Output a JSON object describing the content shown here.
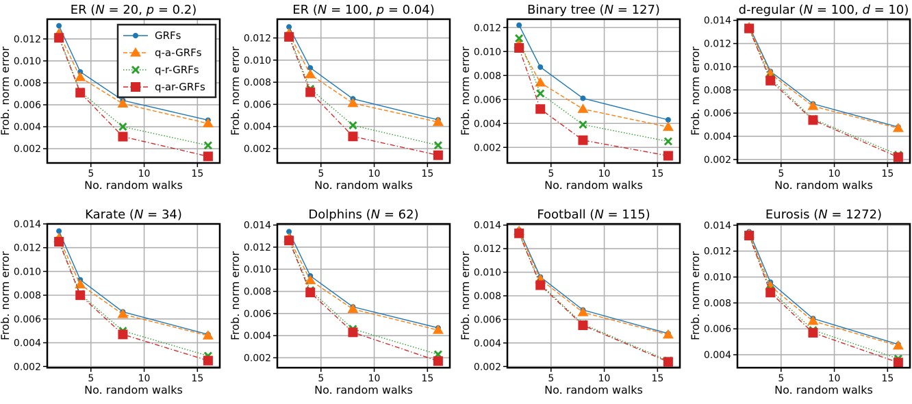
{
  "legend": {
    "items": [
      {
        "label": "GRFs",
        "color": "#1f77b4",
        "marker": "circle",
        "dash": "solid"
      },
      {
        "label": "q-a-GRFs",
        "color": "#ff7f0e",
        "marker": "triangle",
        "dash": "dashed"
      },
      {
        "label": "q-r-GRFs",
        "color": "#2ca02c",
        "marker": "x",
        "dash": "dotted"
      },
      {
        "label": "q-ar-GRFs",
        "color": "#d62728",
        "marker": "square",
        "dash": "dashdot"
      }
    ]
  },
  "chart_data": [
    {
      "type": "line",
      "title_parts": [
        "ER (",
        "N",
        " = 20, ",
        "p",
        " = 0.2)"
      ],
      "xlabel": "No. random walks",
      "ylabel": "Frob. norm error",
      "x": [
        2,
        4,
        8,
        16
      ],
      "xlim": [
        0.9,
        17.1
      ],
      "xticks": [
        5,
        10,
        15
      ],
      "xtick_labels": [
        "5",
        "10",
        "15"
      ],
      "ylim": [
        0.0007,
        0.0138
      ],
      "yticks": [
        0.002,
        0.004,
        0.006,
        0.008,
        0.01,
        0.012
      ],
      "ytick_labels": [
        "0.002",
        "0.004",
        "0.006",
        "0.008",
        "0.010",
        "0.012"
      ],
      "show_legend": true,
      "series": [
        {
          "name": "GRFs",
          "values": [
            0.0132,
            0.009,
            0.0064,
            0.0046
          ]
        },
        {
          "name": "q-a-GRFs",
          "values": [
            0.0125,
            0.0085,
            0.0061,
            0.0043
          ]
        },
        {
          "name": "q-r-GRFs",
          "values": [
            0.0122,
            0.0072,
            0.004,
            0.0023
          ]
        },
        {
          "name": "q-ar-GRFs",
          "values": [
            0.0121,
            0.0071,
            0.0031,
            0.0013
          ]
        }
      ]
    },
    {
      "type": "line",
      "title_parts": [
        "ER (",
        "N",
        " = 100, ",
        "p",
        " = 0.04)"
      ],
      "xlabel": "No. random walks",
      "ylabel": "Frob. norm error",
      "x": [
        2,
        4,
        8,
        16
      ],
      "xlim": [
        0.9,
        17.1
      ],
      "xticks": [
        5,
        10,
        15
      ],
      "xtick_labels": [
        "5",
        "10",
        "15"
      ],
      "ylim": [
        0.0007,
        0.0137
      ],
      "yticks": [
        0.002,
        0.004,
        0.006,
        0.008,
        0.01,
        0.012
      ],
      "ytick_labels": [
        "0.002",
        "0.004",
        "0.006",
        "0.008",
        "0.010",
        "0.012"
      ],
      "show_legend": false,
      "series": [
        {
          "name": "GRFs",
          "values": [
            0.013,
            0.0093,
            0.0065,
            0.0046
          ]
        },
        {
          "name": "q-a-GRFs",
          "values": [
            0.0124,
            0.0087,
            0.0061,
            0.0044
          ]
        },
        {
          "name": "q-r-GRFs",
          "values": [
            0.0122,
            0.0074,
            0.0041,
            0.0023
          ]
        },
        {
          "name": "q-ar-GRFs",
          "values": [
            0.0121,
            0.0071,
            0.0031,
            0.0014
          ]
        }
      ]
    },
    {
      "type": "line",
      "title_parts": [
        "Binary tree (",
        "N",
        " = 127)"
      ],
      "xlabel": "No. random walks",
      "ylabel": "Frob. norm error",
      "x": [
        2,
        4,
        8,
        16
      ],
      "xlim": [
        0.9,
        17.1
      ],
      "xticks": [
        5,
        10,
        15
      ],
      "xtick_labels": [
        "5",
        "10",
        "15"
      ],
      "ylim": [
        0.0007,
        0.0127
      ],
      "yticks": [
        0.002,
        0.004,
        0.006,
        0.008,
        0.01,
        0.012
      ],
      "ytick_labels": [
        "0.002",
        "0.004",
        "0.006",
        "0.008",
        "0.010",
        "0.012"
      ],
      "show_legend": false,
      "series": [
        {
          "name": "GRFs",
          "values": [
            0.0122,
            0.0087,
            0.0061,
            0.0043
          ]
        },
        {
          "name": "q-a-GRFs",
          "values": [
            0.0106,
            0.0074,
            0.0052,
            0.0037
          ]
        },
        {
          "name": "q-r-GRFs",
          "values": [
            0.0111,
            0.0065,
            0.0039,
            0.0025
          ]
        },
        {
          "name": "q-ar-GRFs",
          "values": [
            0.0103,
            0.0052,
            0.0026,
            0.0013
          ]
        }
      ]
    },
    {
      "type": "line",
      "title_parts": [
        "d-regular (",
        "N",
        " = 100, ",
        "d",
        " = 10)"
      ],
      "xlabel": "No. random walks",
      "ylabel": "Frob. norm error",
      "x": [
        2,
        4,
        8,
        16
      ],
      "xlim": [
        0.9,
        17.1
      ],
      "xticks": [
        5,
        10,
        15
      ],
      "xtick_labels": [
        "5",
        "10",
        "15"
      ],
      "ylim": [
        0.0017,
        0.0141
      ],
      "yticks": [
        0.002,
        0.004,
        0.006,
        0.008,
        0.01,
        0.012,
        0.014
      ],
      "ytick_labels": [
        "0.002",
        "0.004",
        "0.006",
        "0.008",
        "0.010",
        "0.012",
        "0.014"
      ],
      "show_legend": false,
      "series": [
        {
          "name": "GRFs",
          "values": [
            0.0135,
            0.0096,
            0.0068,
            0.0048
          ]
        },
        {
          "name": "q-a-GRFs",
          "values": [
            0.0134,
            0.0094,
            0.0066,
            0.0047
          ]
        },
        {
          "name": "q-r-GRFs",
          "values": [
            0.0133,
            0.009,
            0.0055,
            0.0024
          ]
        },
        {
          "name": "q-ar-GRFs",
          "values": [
            0.0133,
            0.0088,
            0.0054,
            0.0022
          ]
        }
      ]
    },
    {
      "type": "line",
      "title_parts": [
        "Karate (",
        "N",
        " = 34)"
      ],
      "xlabel": "No. random walks",
      "ylabel": "Frob. norm error",
      "x": [
        2,
        4,
        8,
        16
      ],
      "xlim": [
        0.9,
        17.1
      ],
      "xticks": [
        5,
        10,
        15
      ],
      "xtick_labels": [
        "5",
        "10",
        "15"
      ],
      "ylim": [
        0.0019,
        0.014
      ],
      "yticks": [
        0.002,
        0.004,
        0.006,
        0.008,
        0.01,
        0.012,
        0.014
      ],
      "ytick_labels": [
        "0.002",
        "0.004",
        "0.006",
        "0.008",
        "0.010",
        "0.012",
        "0.014"
      ],
      "show_legend": false,
      "series": [
        {
          "name": "GRFs",
          "values": [
            0.0134,
            0.0093,
            0.0066,
            0.0047
          ]
        },
        {
          "name": "q-a-GRFs",
          "values": [
            0.0128,
            0.0089,
            0.0064,
            0.0046
          ]
        },
        {
          "name": "q-r-GRFs",
          "values": [
            0.0126,
            0.0081,
            0.005,
            0.0029
          ]
        },
        {
          "name": "q-ar-GRFs",
          "values": [
            0.0125,
            0.008,
            0.0047,
            0.0025
          ]
        }
      ]
    },
    {
      "type": "line",
      "title_parts": [
        "Dolphins (",
        "N",
        " = 62)"
      ],
      "xlabel": "No. random walks",
      "ylabel": "Frob. norm error",
      "x": [
        2,
        4,
        8,
        16
      ],
      "xlim": [
        0.9,
        17.1
      ],
      "xticks": [
        5,
        10,
        15
      ],
      "xtick_labels": [
        "5",
        "10",
        "15"
      ],
      "ylim": [
        0.0011,
        0.0141
      ],
      "yticks": [
        0.002,
        0.004,
        0.006,
        0.008,
        0.01,
        0.012,
        0.014
      ],
      "ytick_labels": [
        "0.002",
        "0.004",
        "0.006",
        "0.008",
        "0.010",
        "0.012",
        "0.014"
      ],
      "show_legend": false,
      "series": [
        {
          "name": "GRFs",
          "values": [
            0.0134,
            0.0094,
            0.0066,
            0.0047
          ]
        },
        {
          "name": "q-a-GRFs",
          "values": [
            0.0128,
            0.009,
            0.0064,
            0.0045
          ]
        },
        {
          "name": "q-r-GRFs",
          "values": [
            0.0127,
            0.0081,
            0.0046,
            0.0023
          ]
        },
        {
          "name": "q-ar-GRFs",
          "values": [
            0.0126,
            0.0079,
            0.0043,
            0.0017
          ]
        }
      ]
    },
    {
      "type": "line",
      "title_parts": [
        "Football (",
        "N",
        " = 115)"
      ],
      "xlabel": "No. random walks",
      "ylabel": "Frob. norm error",
      "x": [
        2,
        4,
        8,
        16
      ],
      "xlim": [
        0.9,
        17.1
      ],
      "xticks": [
        5,
        10,
        15
      ],
      "xtick_labels": [
        "5",
        "10",
        "15"
      ],
      "ylim": [
        0.0019,
        0.0141
      ],
      "yticks": [
        0.002,
        0.004,
        0.006,
        0.008,
        0.01,
        0.012,
        0.014
      ],
      "ytick_labels": [
        "0.002",
        "0.004",
        "0.006",
        "0.008",
        "0.010",
        "0.012",
        "0.014"
      ],
      "show_legend": false,
      "series": [
        {
          "name": "GRFs",
          "values": [
            0.0136,
            0.0096,
            0.0068,
            0.0048
          ]
        },
        {
          "name": "q-a-GRFs",
          "values": [
            0.0135,
            0.0094,
            0.0066,
            0.0047
          ]
        },
        {
          "name": "q-r-GRFs",
          "values": [
            0.0133,
            0.009,
            0.0056,
            0.0025
          ]
        },
        {
          "name": "q-ar-GRFs",
          "values": [
            0.0133,
            0.0089,
            0.0055,
            0.0024
          ]
        }
      ]
    },
    {
      "type": "line",
      "title_parts": [
        "Eurosis (",
        "N",
        " = 1272)"
      ],
      "xlabel": "No. random walks",
      "ylabel": "Frob. norm error",
      "x": [
        2,
        4,
        8,
        16
      ],
      "xlim": [
        0.9,
        17.1
      ],
      "xticks": [
        5,
        10,
        15
      ],
      "xtick_labels": [
        "5",
        "10",
        "15"
      ],
      "ylim": [
        0.003,
        0.0141
      ],
      "yticks": [
        0.004,
        0.006,
        0.008,
        0.01,
        0.012,
        0.014
      ],
      "ytick_labels": [
        "0.004",
        "0.006",
        "0.008",
        "0.010",
        "0.012",
        "0.014"
      ],
      "show_legend": false,
      "series": [
        {
          "name": "GRFs",
          "values": [
            0.0135,
            0.0096,
            0.0068,
            0.0048
          ]
        },
        {
          "name": "q-a-GRFs",
          "values": [
            0.0133,
            0.0093,
            0.0066,
            0.0047
          ]
        },
        {
          "name": "q-r-GRFs",
          "values": [
            0.0132,
            0.009,
            0.0059,
            0.0037
          ]
        },
        {
          "name": "q-ar-GRFs",
          "values": [
            0.0132,
            0.0088,
            0.0057,
            0.0034
          ]
        }
      ]
    }
  ]
}
